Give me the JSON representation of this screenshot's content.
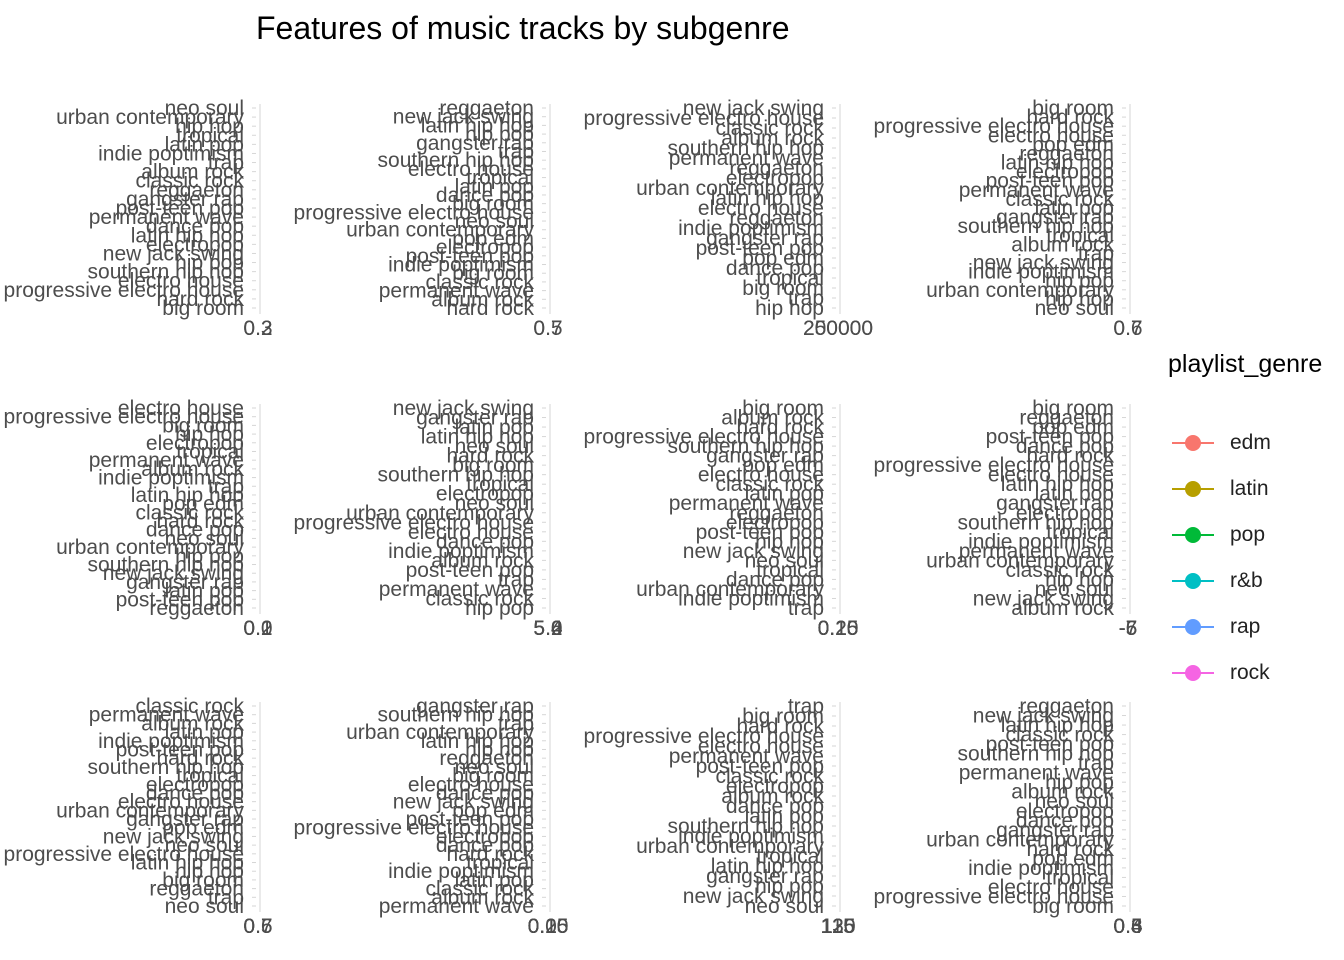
{
  "chart_data": {
    "type": "scatter",
    "title": "Features of music tracks by subgenre",
    "legend": {
      "title": "playlist_genre",
      "position": "right",
      "entries": [
        {
          "name": "edm",
          "color": "#F8766D"
        },
        {
          "name": "latin",
          "color": "#B79F00"
        },
        {
          "name": "pop",
          "color": "#00BA38"
        },
        {
          "name": "r&b",
          "color": "#00BFC4"
        },
        {
          "name": "rap",
          "color": "#619CFF"
        },
        {
          "name": "rock",
          "color": "#F564E3"
        }
      ]
    },
    "grid": false,
    "panels": [
      {
        "categories": [
          "neo soul",
          "urban contemporary",
          "hip hop",
          "tropical",
          "latin pop",
          "indie poptimism",
          "trap",
          "album rock",
          "classic rock",
          "reggaeton",
          "gangster rap",
          "post-teen pop",
          "permanent wave",
          "dance pop",
          "latin hip hop",
          "electropop",
          "new jack swing",
          "hip pop",
          "southern hip hop",
          "electro house",
          "progressive electro house",
          "hard rock",
          "big room"
        ],
        "x_tick_labels": [
          "0.2",
          "0.3"
        ]
      },
      {
        "categories": [
          "reggaeton",
          "new jack swing",
          "latin hip hop",
          "hip pop",
          "gangster rap",
          "trap",
          "southern hip hop",
          "electro house",
          "tropical",
          "latin pop",
          "dance pop",
          "big room",
          "progressive electro house",
          "neo soul",
          "urban contemporary",
          "pop edm",
          "electropop",
          "post-teen pop",
          "indie poptimism",
          "big room",
          "classic rock",
          "permanent wave",
          "album rock",
          "hard rock"
        ],
        "x_tick_labels": [
          "0.5",
          "0.7"
        ]
      },
      {
        "categories": [
          "new jack swing",
          "progressive electro house",
          "classic rock",
          "album rock",
          "southern hip hop",
          "permanent wave",
          "reggaeton",
          "electropop",
          "urban contemporary",
          "latin hip hop",
          "electro house",
          "reggaeton",
          "indie poptimism",
          "gangster rap",
          "post-teen pop",
          "pop edm",
          "dance pop",
          "tropical",
          "big room",
          "trap",
          "hip hop"
        ],
        "x_tick_labels": [
          "200000",
          "250000"
        ]
      },
      {
        "categories": [
          "big room",
          "hard rock",
          "progressive electro house",
          "electro house",
          "pop edm",
          "reggaeton",
          "latin hip hop",
          "electropop",
          "post-teen pop",
          "permanent wave",
          "classic rock",
          "latin pop",
          "gangster rap",
          "southern hip hop",
          "tropical",
          "album rock",
          "trap",
          "new jack swing",
          "indie poptimism",
          "hip pop",
          "urban contemporary",
          "hip hop",
          "neo soul"
        ],
        "x_tick_labels": [
          "0.6",
          "0.7"
        ]
      },
      {
        "categories": [
          "electro house",
          "progressive electro house",
          "big room",
          "hip hop",
          "electropop",
          "tropical",
          "permanent wave",
          "album rock",
          "indie poptimism",
          "trap",
          "latin hip hop",
          "pop edm",
          "classic rock",
          "hard rock",
          "dance pop",
          "neo soul",
          "urban contemporary",
          "hip pop",
          "southern hip hop",
          "new jack swing",
          "gangster rap",
          "latin pop",
          "post-teen pop",
          "reggaeton"
        ],
        "x_tick_labels": [
          "0.0",
          "0.1",
          "0.2"
        ]
      },
      {
        "categories": [
          "new jack swing",
          "gangster rap",
          "latin pop",
          "latin hip hop",
          "neo soul",
          "hard rock",
          "big room",
          "southern hip hop",
          "tropical",
          "electropop",
          "neo soul",
          "urban contemporary",
          "progressive electro house",
          "electro house",
          "dance pop",
          "indie poptimism",
          "album rock",
          "post-teen pop",
          "trap",
          "permanent wave",
          "classic rock",
          "hip pop"
        ],
        "x_tick_labels": [
          "5.0",
          "5.2",
          "5.4",
          "5.6"
        ]
      },
      {
        "categories": [
          "big room",
          "album rock",
          "hard rock",
          "progressive electro house",
          "southern hip hop",
          "gangster rap",
          "pop edm",
          "electro house",
          "classic rock",
          "latin pop",
          "permanent wave",
          "reggaeton",
          "electropop",
          "post-teen pop",
          "hip hop",
          "new jack swing",
          "neo soul",
          "tropical",
          "dance pop",
          "urban contemporary",
          "indie poptimism",
          "trap"
        ],
        "x_tick_labels": [
          "0.10",
          "0.15",
          "0.20",
          "0.25"
        ]
      },
      {
        "categories": [
          "big room",
          "reggaeton",
          "pop edm",
          "post-teen pop",
          "dance pop",
          "hard rock",
          "progressive electro house",
          "electro house",
          "latin hip hop",
          "latin pop",
          "gangster rap",
          "electropop",
          "southern hip hop",
          "tropical",
          "indie poptimism",
          "permanent wave",
          "urban contemporary",
          "classic rock",
          "hip hop",
          "neo soul",
          "new jack swing",
          "album rock"
        ],
        "x_tick_labels": [
          "-7",
          "-6",
          "-5"
        ]
      },
      {
        "categories": [
          "classic rock",
          "permanent wave",
          "album rock",
          "latin pop",
          "indie poptimism",
          "post-teen pop",
          "hard rock",
          "southern hip hop",
          "tropical",
          "electropop",
          "dance pop",
          "electro house",
          "urban contemporary",
          "gangster rap",
          "pop edm",
          "new jack swing",
          "neo soul",
          "progressive electro house",
          "latin hip hop",
          "hip hop",
          "big room",
          "reggaeton",
          "trap",
          "neo soul"
        ],
        "x_tick_labels": [
          "0.5",
          "0.6",
          "0.7"
        ]
      },
      {
        "categories": [
          "gangster rap",
          "southern hip hop",
          "trap",
          "urban contemporary",
          "latin hip hop",
          "hip hop",
          "reggaeton",
          "neo soul",
          "big room",
          "electro house",
          "dance pop",
          "new jack swing",
          "pop edm",
          "post-teen pop",
          "progressive electro house",
          "electropop",
          "dance pop",
          "hard rock",
          "tropical",
          "indie poptimism",
          "latin pop",
          "classic rock",
          "album rock",
          "permanent wave"
        ],
        "x_tick_labels": [
          "0.05",
          "0.10",
          "0.15",
          "0.20"
        ]
      },
      {
        "categories": [
          "trap",
          "big room",
          "hard rock",
          "progressive electro house",
          "electro house",
          "permanent wave",
          "post-teen pop",
          "classic rock",
          "electropop",
          "album rock",
          "dance pop",
          "latin pop",
          "southern hip hop",
          "indie poptimism",
          "urban contemporary",
          "tropical",
          "latin hip hop",
          "gangster rap",
          "hip pop",
          "new jack swing",
          "neo soul"
        ],
        "x_tick_labels": [
          "115",
          "120",
          "125",
          "130"
        ]
      },
      {
        "categories": [
          "reggaeton",
          "new jack swing",
          "latin hip hop",
          "classic rock",
          "post-teen pop",
          "southern hip hop",
          "trap",
          "permanent wave",
          "hip pop",
          "album rock",
          "neo soul",
          "electropop",
          "dance pop",
          "gangster rap",
          "urban contemporary",
          "hard rock",
          "pop edm",
          "indie poptimism",
          "tropical",
          "electro house",
          "progressive electro house",
          "big room"
        ],
        "x_tick_labels": [
          "0.3",
          "0.4",
          "0.5",
          "0.6"
        ]
      }
    ]
  }
}
